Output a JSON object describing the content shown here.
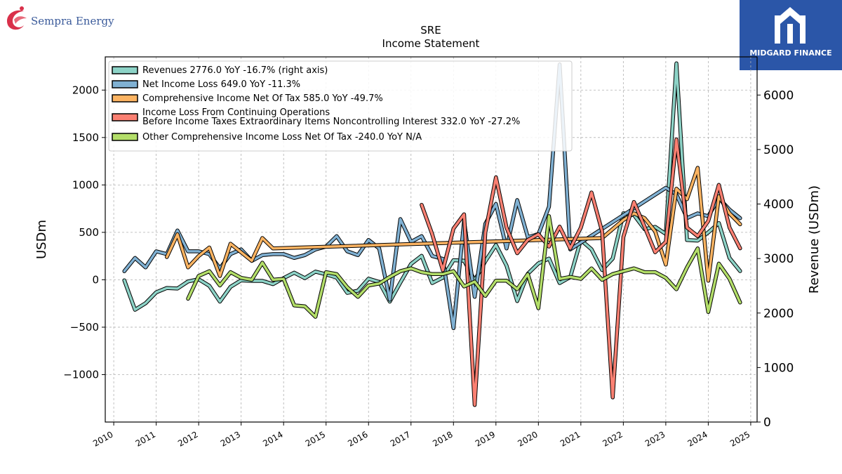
{
  "header": {
    "company_logo_text": "Sempra Energy",
    "brand_logo_text": "MIDGARD FINANCE"
  },
  "chart_data": {
    "type": "line",
    "title": "SRE",
    "subtitle": "Income Statement",
    "ylabel_left": "USDm",
    "ylabel_right": "Revenue (USDm)",
    "ylim_left": [
      -1500,
      2350
    ],
    "ylim_right": [
      0,
      6700
    ],
    "xlim": [
      2009.8,
      2025.15
    ],
    "x_ticks": [
      2010,
      2011,
      2012,
      2013,
      2014,
      2015,
      2016,
      2017,
      2018,
      2019,
      2020,
      2021,
      2022,
      2023,
      2024,
      2025
    ],
    "y_ticks_left": [
      -1000,
      -500,
      0,
      500,
      1000,
      1500,
      2000
    ],
    "y_ticks_right": [
      0,
      1000,
      2000,
      3000,
      4000,
      5000,
      6000
    ],
    "grid": true,
    "legend_position": "top-left",
    "series": [
      {
        "name": "Revenues  2776.0 YoY -16.7% (right axis)",
        "color": "#8dd3c7",
        "axis": "right",
        "x": [
          2010.25,
          2010.5,
          2010.75,
          2011.0,
          2011.25,
          2011.5,
          2011.75,
          2012.0,
          2012.25,
          2012.5,
          2012.75,
          2013.0,
          2013.25,
          2013.5,
          2013.75,
          2014.0,
          2014.25,
          2014.5,
          2014.75,
          2015.0,
          2015.25,
          2015.5,
          2015.75,
          2016.0,
          2016.25,
          2016.5,
          2016.75,
          2017.0,
          2017.25,
          2017.5,
          2017.75,
          2018.0,
          2018.25,
          2018.5,
          2018.75,
          2019.0,
          2019.25,
          2019.5,
          2019.75,
          2020.0,
          2020.25,
          2020.5,
          2020.75,
          2021.0,
          2021.25,
          2021.5,
          2021.75,
          2022.0,
          2022.25,
          2022.5,
          2022.75,
          2023.0,
          2023.25,
          2023.5,
          2023.75,
          2024.0,
          2024.25,
          2024.5,
          2024.75
        ],
        "values": [
          2600,
          2060,
          2180,
          2380,
          2460,
          2450,
          2580,
          2620,
          2500,
          2210,
          2480,
          2600,
          2590,
          2590,
          2530,
          2640,
          2740,
          2640,
          2760,
          2710,
          2650,
          2370,
          2410,
          2630,
          2570,
          2210,
          2560,
          2900,
          3050,
          2550,
          2650,
          2970,
          2960,
          2600,
          2950,
          3250,
          2870,
          2220,
          2720,
          2910,
          3000,
          2550,
          2660,
          3340,
          3170,
          2790,
          3000,
          3830,
          3800,
          3540,
          3580,
          3450,
          6580,
          3340,
          3330,
          3480,
          3650,
          3010,
          2770
        ]
      },
      {
        "name": "Net Income Loss  649.0 YoY -11.3%",
        "color": "#80b1d3",
        "axis": "left",
        "x": [
          2010.25,
          2010.5,
          2010.75,
          2011.0,
          2011.25,
          2011.5,
          2011.75,
          2012.0,
          2012.25,
          2012.5,
          2012.75,
          2013.0,
          2013.25,
          2013.5,
          2013.75,
          2014.0,
          2014.25,
          2014.5,
          2014.75,
          2015.0,
          2015.25,
          2015.5,
          2015.75,
          2016.0,
          2016.25,
          2016.5,
          2016.75,
          2017.0,
          2017.25,
          2017.5,
          2017.75,
          2018.0,
          2018.25,
          2018.5,
          2018.75,
          2019.0,
          2019.25,
          2019.5,
          2019.75,
          2020.0,
          2020.25,
          2020.5,
          2020.75,
          2023.0,
          2023.25,
          2023.5,
          2023.75,
          2024.0,
          2024.25,
          2024.5,
          2024.75
        ],
        "values": [
          90,
          230,
          130,
          300,
          270,
          520,
          300,
          300,
          270,
          120,
          270,
          320,
          200,
          260,
          270,
          270,
          230,
          260,
          320,
          350,
          460,
          300,
          260,
          420,
          330,
          -210,
          640,
          400,
          460,
          250,
          220,
          -510,
          620,
          -180,
          590,
          800,
          330,
          840,
          450,
          480,
          770,
          2270,
          320,
          970,
          900,
          650,
          700,
          670,
          860,
          740,
          649
        ]
      },
      {
        "name": "Comprehensive Income Net Of Tax  585.0 YoY -49.7%",
        "color": "#fdb462",
        "axis": "left",
        "x": [
          2011.25,
          2011.5,
          2011.75,
          2012.0,
          2012.25,
          2012.5,
          2012.75,
          2013.0,
          2013.25,
          2013.5,
          2013.75,
          2021.5,
          2022.0,
          2022.25,
          2022.5,
          2022.75,
          2023.0,
          2023.25,
          2023.5,
          2023.75,
          2024.0,
          2024.25,
          2024.5,
          2024.75
        ],
        "values": [
          240,
          480,
          130,
          250,
          340,
          40,
          380,
          290,
          200,
          440,
          330,
          440,
          630,
          700,
          650,
          510,
          160,
          960,
          850,
          1180,
          -10,
          880,
          700,
          585
        ]
      },
      {
        "name": "Income Loss From Continuing Operations\nBefore Income Taxes Extraordinary Items Noncontrolling Interest  332.0 YoY -27.2%",
        "color": "#fb8072",
        "axis": "left",
        "x": [
          2017.25,
          2017.5,
          2017.75,
          2018.0,
          2018.25,
          2018.5,
          2018.75,
          2019.0,
          2019.25,
          2019.5,
          2019.75,
          2020.0,
          2020.25,
          2020.5,
          2020.75,
          2021.0,
          2021.25,
          2021.5,
          2021.75,
          2022.0,
          2022.25,
          2022.5,
          2022.75,
          2023.0,
          2023.25,
          2023.5,
          2023.75,
          2024.0,
          2024.25,
          2024.5,
          2024.75
        ],
        "values": [
          790,
          480,
          100,
          540,
          690,
          -1320,
          500,
          1080,
          550,
          280,
          420,
          480,
          350,
          560,
          330,
          550,
          920,
          510,
          -1240,
          450,
          820,
          560,
          290,
          400,
          1480,
          550,
          460,
          620,
          1000,
          550,
          332
        ]
      },
      {
        "name": "Other Comprehensive Income Loss Net Of Tax  -240.0 YoY N/A",
        "color": "#b3de69",
        "axis": "left",
        "x": [
          2011.75,
          2012.0,
          2012.25,
          2012.5,
          2012.75,
          2013.0,
          2013.25,
          2013.5,
          2013.75,
          2014.0,
          2014.25,
          2014.5,
          2014.75,
          2015.0,
          2015.25,
          2015.5,
          2015.75,
          2016.0,
          2016.25,
          2016.5,
          2016.75,
          2017.0,
          2017.25,
          2017.5,
          2017.75,
          2018.0,
          2018.25,
          2018.5,
          2018.75,
          2019.0,
          2019.25,
          2019.5,
          2019.75,
          2020.0,
          2020.25,
          2020.5,
          2020.75,
          2021.0,
          2021.25,
          2021.5,
          2021.75,
          2022.0,
          2022.25,
          2022.5,
          2022.75,
          2023.0,
          2023.25,
          2023.5,
          2023.75,
          2024.0,
          2024.25,
          2024.5,
          2024.75
        ],
        "values": [
          -200,
          40,
          90,
          -60,
          80,
          20,
          0,
          180,
          0,
          10,
          -270,
          -280,
          -390,
          80,
          60,
          -80,
          -180,
          -60,
          -40,
          30,
          90,
          120,
          80,
          60,
          60,
          90,
          -70,
          -20,
          -170,
          -10,
          -10,
          -100,
          60,
          -300,
          670,
          10,
          30,
          10,
          120,
          0,
          60,
          90,
          120,
          80,
          80,
          20,
          -100,
          130,
          330,
          -340,
          170,
          10,
          -240
        ]
      }
    ]
  }
}
